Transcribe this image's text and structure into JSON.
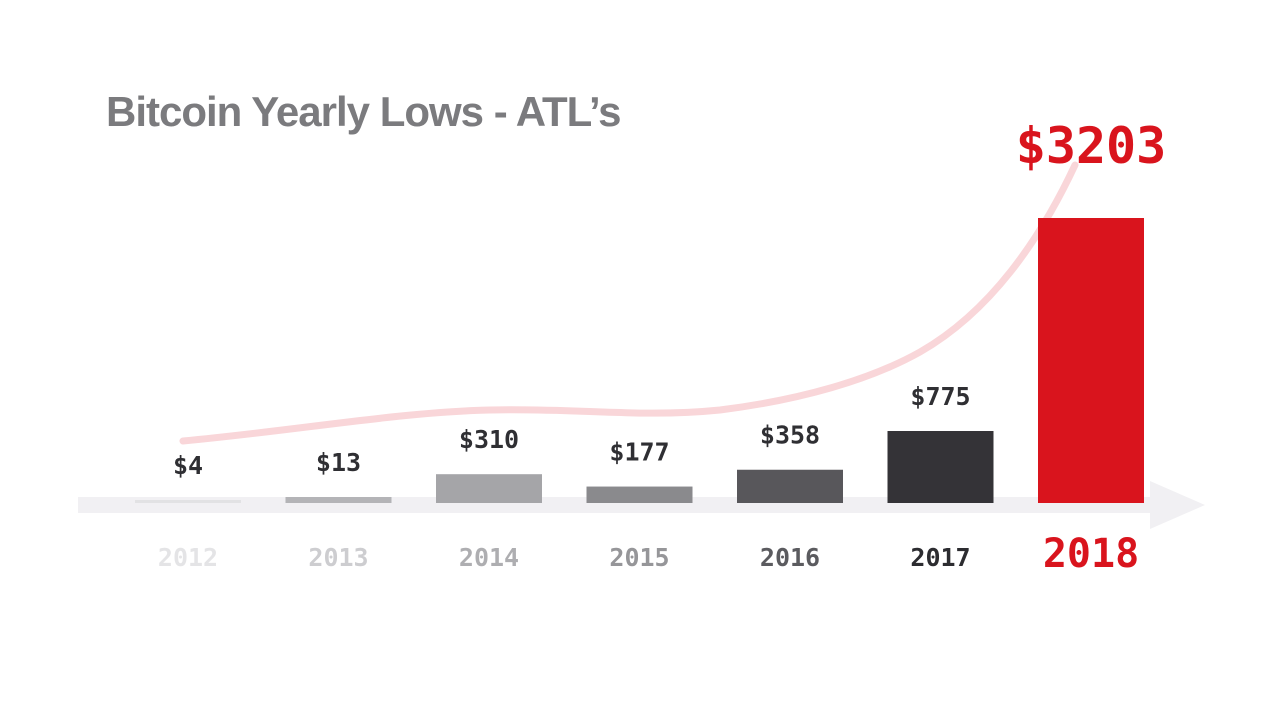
{
  "chart_data": {
    "type": "bar",
    "title": "Bitcoin Yearly Lows - ATL’s",
    "xlabel": "",
    "ylabel": "",
    "categories": [
      "2012",
      "2013",
      "2014",
      "2015",
      "2016",
      "2017",
      "2018"
    ],
    "values": [
      4,
      13,
      310,
      177,
      358,
      775,
      3203
    ],
    "value_labels": [
      "$4",
      "$13",
      "$310",
      "$177",
      "$358",
      "$775",
      "$3203"
    ],
    "ylim": [
      0,
      3203
    ],
    "grid": false,
    "legend": "none",
    "highlight_index": 6,
    "colors": {
      "bars": [
        "#e2e2e4",
        "#b4b4b7",
        "#a5a5a8",
        "#8a8a8d",
        "#58575b",
        "#343337",
        "#d9141d"
      ],
      "category_labels": [
        "#e4e4e6",
        "#cdcdd0",
        "#aeaeb1",
        "#969699",
        "#5b5b5f",
        "#2c2c30",
        "#d9141d"
      ],
      "axis": "#f1f0f3",
      "trend": "#f9d6d9",
      "title": "#7b7b7e"
    }
  }
}
